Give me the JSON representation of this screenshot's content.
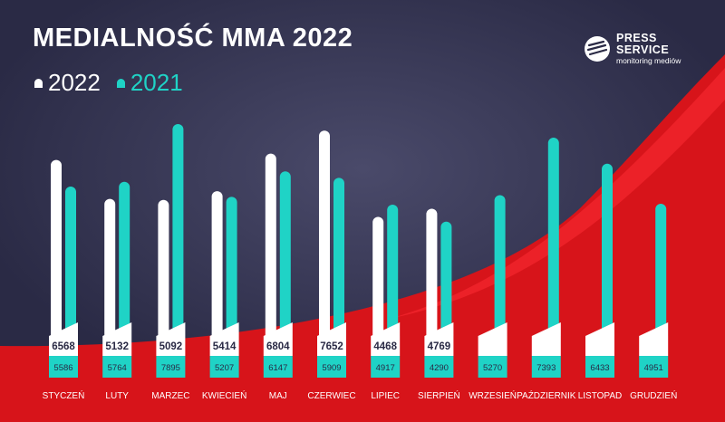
{
  "title": "MEDIALNOŚĆ MMA 2022",
  "logo": {
    "line1": "PRESS",
    "line2": "SERVICE",
    "sub": "monitoring mediów"
  },
  "colors": {
    "series_2022": "#ffffff",
    "series_2021": "#1fd3c6",
    "background": "#2a2a45",
    "accent_red": "#d7141a"
  },
  "chart_data": {
    "type": "bar",
    "title": "MEDIALNOŚĆ MMA 2022",
    "xlabel": "",
    "ylabel": "",
    "ylim": [
      0,
      8500
    ],
    "grid": false,
    "legend_position": "top-left",
    "categories": [
      "STYCZEŃ",
      "LUTY",
      "MARZEC",
      "KWIECIEŃ",
      "MAJ",
      "CZERWIEC",
      "LIPIEC",
      "SIERPIEŃ",
      "WRZESIEŃ",
      "PAŹDZIERNIK",
      "LISTOPAD",
      "GRUDZIEŃ"
    ],
    "series": [
      {
        "name": "2022",
        "values": [
          6568,
          5132,
          5092,
          5414,
          6804,
          7652,
          4468,
          4769,
          null,
          null,
          null,
          null
        ]
      },
      {
        "name": "2021",
        "values": [
          5586,
          5764,
          7895,
          5207,
          6147,
          5909,
          4917,
          4290,
          5270,
          7393,
          6433,
          4951
        ]
      }
    ]
  }
}
